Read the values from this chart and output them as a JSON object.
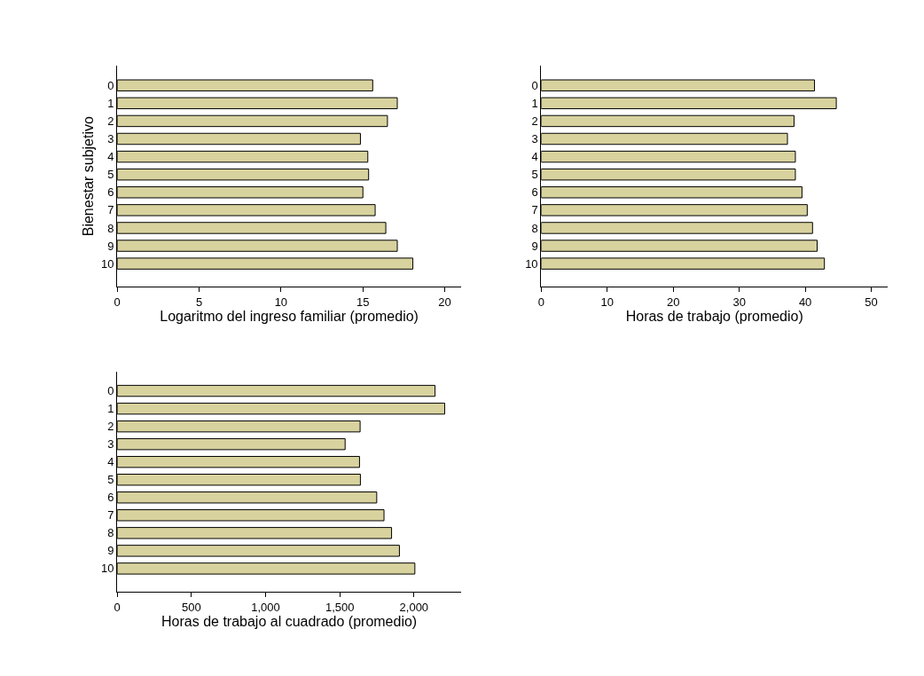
{
  "chart_data": [
    {
      "type": "bar",
      "orientation": "horizontal",
      "ylabel": "Bienestar subjetivo",
      "xlabel": "Logaritmo del ingreso familiar (promedio)",
      "categories": [
        "0",
        "1",
        "2",
        "3",
        "4",
        "5",
        "6",
        "7",
        "8",
        "9",
        "10"
      ],
      "values": [
        15.6,
        17.1,
        16.5,
        14.85,
        15.3,
        15.35,
        15.0,
        15.75,
        16.4,
        17.1,
        18.05
      ],
      "color": "#d8d29e",
      "xlim": [
        0,
        21
      ],
      "xticks": [
        0,
        5,
        10,
        15,
        20
      ]
    },
    {
      "type": "bar",
      "orientation": "horizontal",
      "xlabel": "Horas de trabajo (promedio)",
      "categories": [
        "0",
        "1",
        "2",
        "3",
        "4",
        "5",
        "6",
        "7",
        "8",
        "9",
        "10"
      ],
      "values": [
        41.4,
        44.7,
        38.3,
        37.3,
        38.5,
        38.5,
        39.5,
        40.3,
        41.1,
        41.8,
        42.9
      ],
      "color": "#d8d29e",
      "xlim": [
        0,
        52.5
      ],
      "xticks": [
        0,
        10,
        20,
        30,
        40,
        50
      ]
    },
    {
      "type": "bar",
      "orientation": "horizontal",
      "xlabel": "Horas de trabajo al cuadrado (promedio)",
      "categories": [
        "0",
        "1",
        "2",
        "3",
        "4",
        "5",
        "6",
        "7",
        "8",
        "9",
        "10"
      ],
      "values": [
        2142,
        2207,
        1637,
        1536,
        1633,
        1639,
        1749,
        1798,
        1849,
        1902,
        2006
      ],
      "color": "#d8d29e",
      "xlim": [
        0,
        2318
      ],
      "xticks": [
        0,
        500,
        {
          "value": 1000,
          "label": "1,000"
        },
        {
          "value": 1500,
          "label": "1,500"
        },
        {
          "value": 2000,
          "label": "2,000"
        }
      ]
    }
  ]
}
